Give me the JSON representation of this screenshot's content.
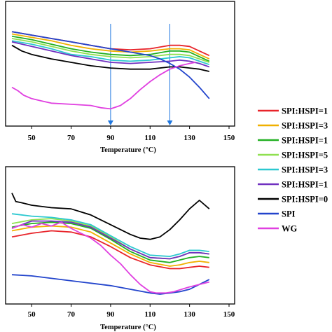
{
  "chart_data": [
    {
      "type": "line",
      "panel": "top",
      "xlabel": "Temperature (°C)",
      "xticks": [
        50,
        70,
        90,
        110,
        130,
        150
      ],
      "xlim": [
        38,
        150
      ],
      "ylim": [
        0,
        100
      ],
      "grid": false,
      "markers": [
        {
          "x": 90,
          "color": "#1f77e0"
        },
        {
          "x": 120,
          "color": "#1f77e0"
        }
      ],
      "series": [
        {
          "color": "#e8242a",
          "x": [
            40,
            50,
            60,
            70,
            80,
            90,
            100,
            110,
            120,
            125,
            130,
            135,
            140
          ],
          "y": [
            77,
            74,
            71,
            68,
            65,
            62,
            61,
            62,
            65,
            65,
            64,
            60,
            56
          ]
        },
        {
          "color": "#f0b000",
          "x": [
            40,
            50,
            60,
            70,
            80,
            90,
            100,
            110,
            120,
            125,
            130,
            135,
            140
          ],
          "y": [
            75,
            72,
            69,
            65,
            62,
            60,
            59,
            60,
            62,
            62,
            61,
            57,
            53
          ]
        },
        {
          "color": "#22b022",
          "x": [
            40,
            50,
            60,
            70,
            80,
            90,
            100,
            110,
            120,
            125,
            130,
            135,
            140
          ],
          "y": [
            73,
            70,
            66,
            62,
            59,
            57,
            56,
            57,
            60,
            60,
            59,
            55,
            51
          ]
        },
        {
          "color": "#8fe050",
          "x": [
            40,
            50,
            60,
            70,
            80,
            90,
            100,
            110,
            120,
            125,
            130,
            135,
            140
          ],
          "y": [
            71,
            68,
            64,
            60,
            57,
            55,
            54,
            55,
            57,
            57,
            56,
            53,
            50
          ]
        },
        {
          "color": "#2cc8d0",
          "x": [
            40,
            50,
            60,
            70,
            80,
            90,
            100,
            110,
            120,
            125,
            130,
            135,
            140
          ],
          "y": [
            69,
            66,
            62,
            57,
            55,
            52,
            51,
            52,
            54,
            55,
            54,
            51,
            48
          ]
        },
        {
          "color": "#7030c0",
          "x": [
            40,
            50,
            60,
            70,
            80,
            90,
            100,
            110,
            120,
            125,
            130,
            135,
            140
          ],
          "y": [
            68,
            64,
            60,
            56,
            53,
            50,
            49,
            50,
            51,
            52,
            51,
            49,
            46
          ]
        },
        {
          "color": "#000000",
          "x": [
            40,
            45,
            50,
            60,
            70,
            80,
            90,
            100,
            110,
            120,
            125,
            130,
            135,
            140
          ],
          "y": [
            65,
            60,
            57,
            53,
            50,
            47,
            45,
            44,
            44,
            46,
            46,
            45,
            44,
            42
          ]
        },
        {
          "color": "#2244cc",
          "x": [
            40,
            50,
            60,
            70,
            80,
            90,
            100,
            110,
            115,
            120,
            125,
            130,
            135,
            140
          ],
          "y": [
            77,
            74,
            71,
            68,
            65,
            62,
            59,
            56,
            53,
            49,
            44,
            37,
            28,
            18
          ]
        },
        {
          "color": "#e040e0",
          "x": [
            40,
            43,
            46,
            50,
            55,
            60,
            70,
            80,
            85,
            90,
            95,
            100,
            105,
            110,
            115,
            120,
            125,
            130,
            133
          ],
          "y": [
            28,
            25,
            21,
            18,
            16,
            14,
            13,
            12,
            10,
            9,
            12,
            18,
            26,
            33,
            39,
            44,
            47,
            49,
            50
          ]
        }
      ]
    },
    {
      "type": "line",
      "panel": "bottom",
      "xlabel": "Temperature (°C)",
      "xticks": [
        50,
        70,
        90,
        110,
        130,
        150
      ],
      "xlim": [
        38,
        150
      ],
      "ylim": [
        0,
        100
      ],
      "grid": false,
      "series": [
        {
          "color": "#e8242a",
          "x": [
            40,
            50,
            60,
            70,
            80,
            90,
            100,
            110,
            120,
            125,
            130,
            135,
            140
          ],
          "y": [
            47,
            50,
            52,
            51,
            47,
            39,
            30,
            24,
            21,
            21,
            22,
            23,
            22
          ]
        },
        {
          "color": "#f0b000",
          "x": [
            40,
            50,
            60,
            70,
            80,
            90,
            100,
            110,
            120,
            125,
            130,
            135,
            140
          ],
          "y": [
            52,
            55,
            56,
            55,
            51,
            42,
            33,
            26,
            23,
            24,
            26,
            27,
            26
          ]
        },
        {
          "color": "#22b022",
          "x": [
            40,
            50,
            60,
            70,
            80,
            90,
            100,
            110,
            120,
            125,
            130,
            135,
            140
          ],
          "y": [
            55,
            58,
            59,
            58,
            54,
            45,
            35,
            28,
            26,
            28,
            30,
            31,
            30
          ]
        },
        {
          "color": "#8fe050",
          "x": [
            40,
            50,
            60,
            70,
            80,
            90,
            100,
            110,
            120,
            125,
            130,
            135,
            140
          ],
          "y": [
            58,
            61,
            62,
            60,
            56,
            47,
            37,
            30,
            29,
            31,
            34,
            34,
            33
          ]
        },
        {
          "color": "#2cc8d0",
          "x": [
            40,
            50,
            60,
            70,
            80,
            90,
            100,
            110,
            120,
            125,
            130,
            135,
            140
          ],
          "y": [
            66,
            64,
            63,
            61,
            57,
            48,
            39,
            32,
            31,
            33,
            36,
            36,
            35
          ]
        },
        {
          "color": "#7030c0",
          "x": [
            40,
            50,
            60,
            70,
            80,
            90,
            100,
            110,
            120,
            125,
            130,
            135,
            140
          ],
          "y": [
            54,
            60,
            60,
            59,
            55,
            46,
            37,
            30,
            29,
            31,
            34,
            34,
            33
          ]
        },
        {
          "color": "#000000",
          "x": [
            40,
            42,
            45,
            50,
            60,
            70,
            80,
            90,
            100,
            105,
            110,
            115,
            120,
            125,
            130,
            135,
            140
          ],
          "y": [
            83,
            76,
            75,
            73,
            71,
            70,
            65,
            57,
            49,
            46,
            45,
            47,
            53,
            61,
            70,
            77,
            70
          ]
        },
        {
          "color": "#2244cc",
          "x": [
            40,
            50,
            60,
            70,
            80,
            90,
            100,
            110,
            115,
            120,
            125,
            130,
            135,
            140
          ],
          "y": [
            16,
            15,
            13,
            11,
            9,
            7,
            4,
            1,
            0,
            1,
            2,
            4,
            8,
            12
          ]
        },
        {
          "color": "#e040e0",
          "x": [
            40,
            45,
            50,
            55,
            60,
            65,
            70,
            75,
            80,
            85,
            90,
            95,
            100,
            105,
            110,
            113,
            118,
            122,
            126,
            130,
            135,
            140
          ],
          "y": [
            54,
            57,
            55,
            58,
            56,
            59,
            54,
            50,
            46,
            40,
            32,
            25,
            16,
            8,
            2,
            1,
            1,
            2,
            4,
            6,
            8,
            10
          ]
        }
      ]
    }
  ],
  "legend": {
    "placement": "right",
    "entries": [
      {
        "label": "SPI:HSPI=1",
        "color": "#e8242a"
      },
      {
        "label": "SPI:HSPI=3",
        "color": "#f0b000"
      },
      {
        "label": "SPI:HSPI=1",
        "color": "#22b022"
      },
      {
        "label": "SPI:HSPI=5",
        "color": "#8fe050"
      },
      {
        "label": "SPI:HSPI=3",
        "color": "#2cc8d0"
      },
      {
        "label": "SPI:HSPI=1",
        "color": "#7030c0"
      },
      {
        "label": "SPI:HSPI=0",
        "color": "#000000"
      },
      {
        "label": "SPI",
        "color": "#2244cc"
      },
      {
        "label": "WG",
        "color": "#e040e0"
      }
    ]
  }
}
